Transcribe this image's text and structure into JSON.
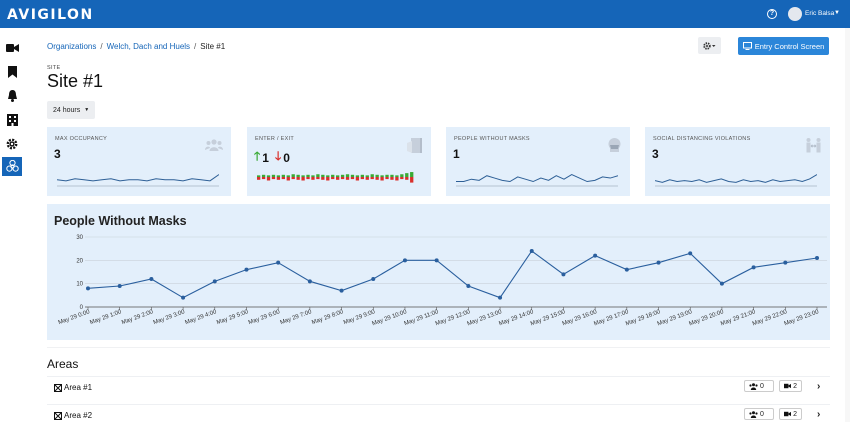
{
  "header": {
    "logo": "avigilon",
    "user_name": "Eric Balsa"
  },
  "breadcrumb": {
    "items": [
      "Organizations",
      "Welch, Dach and Huels"
    ],
    "current": "Site #1"
  },
  "toolbar": {
    "entry_button_label": "Entry Control Screen"
  },
  "site": {
    "label": "SITE",
    "title": "Site #1"
  },
  "time_range": {
    "label": "24 hours"
  },
  "cards": [
    {
      "title": "MAX OCCUPANCY",
      "value": "3",
      "icon": "users-icon",
      "spark": [
        5,
        4,
        6,
        5,
        4,
        5,
        6,
        4,
        5,
        5,
        4,
        6,
        5,
        5,
        4,
        6,
        5,
        4,
        10
      ]
    },
    {
      "title": "ENTER / EXIT",
      "enter": "1",
      "exit": "0",
      "icon": "door-exit-icon",
      "enter_bars": [
        3,
        4,
        3,
        4,
        3,
        4,
        3,
        5,
        4,
        3,
        4,
        3,
        5,
        4,
        3,
        4,
        3,
        4,
        5,
        4,
        3,
        4,
        3,
        5,
        4,
        3,
        4,
        4,
        3,
        5,
        7,
        9
      ],
      "exit_bars": [
        4,
        3,
        5,
        3,
        4,
        3,
        5,
        3,
        4,
        5,
        3,
        4,
        3,
        4,
        5,
        3,
        4,
        3,
        4,
        3,
        5,
        3,
        4,
        3,
        4,
        5,
        3,
        4,
        5,
        3,
        4,
        8
      ]
    },
    {
      "title": "PEOPLE WITHOUT MASKS",
      "value": "1",
      "icon": "head-mask-icon",
      "spark": [
        3,
        3,
        5,
        4,
        8,
        6,
        4,
        3,
        7,
        5,
        3,
        6,
        4,
        8,
        5,
        9,
        6,
        3,
        4,
        7,
        6,
        8
      ]
    },
    {
      "title": "SOCIAL DISTANCING VIOLATIONS",
      "value": "3",
      "icon": "people-distance-icon",
      "spark": [
        5,
        3,
        6,
        4,
        5,
        4,
        6,
        3,
        5,
        7,
        4,
        3,
        6,
        4,
        5,
        3,
        6,
        4,
        5,
        6,
        4,
        7,
        12
      ]
    }
  ],
  "chart_data": {
    "type": "line",
    "title": "People Without Masks",
    "categories": [
      "May 29 0:00",
      "May 29 1:00",
      "May 29 2:00",
      "May 29 3:00",
      "May 29 4:00",
      "May 29 5:00",
      "May 29 6:00",
      "May 29 7:00",
      "May 29 8:00",
      "May 29 9:00",
      "May 29 10:00",
      "May 29 11:00",
      "May 29 12:00",
      "May 29 13:00",
      "May 29 14:00",
      "May 29 15:00",
      "May 29 16:00",
      "May 29 17:00",
      "May 29 18:00",
      "May 29 19:00",
      "May 29 20:00",
      "May 29 21:00",
      "May 29 22:00",
      "May 29 23:00"
    ],
    "values": [
      8,
      9,
      12,
      4,
      11,
      16,
      19,
      11,
      7,
      12,
      20,
      20,
      9,
      4,
      24,
      14,
      22,
      16,
      19,
      23,
      10,
      17,
      19,
      21
    ],
    "ylim": [
      0,
      30
    ],
    "yticks": [
      "0",
      "10",
      "20",
      "30"
    ],
    "grid": true,
    "color": "#2a5f9e"
  },
  "areas": {
    "title": "Areas",
    "items": [
      {
        "name": "Area #1",
        "people": "0",
        "cameras": "2"
      },
      {
        "name": "Area #2",
        "people": "0",
        "cameras": "2"
      }
    ]
  },
  "colors": {
    "topbar": "#1565b8",
    "card_bg": "#e3effb",
    "enter": "#3aaa35",
    "exit": "#d9302c"
  }
}
